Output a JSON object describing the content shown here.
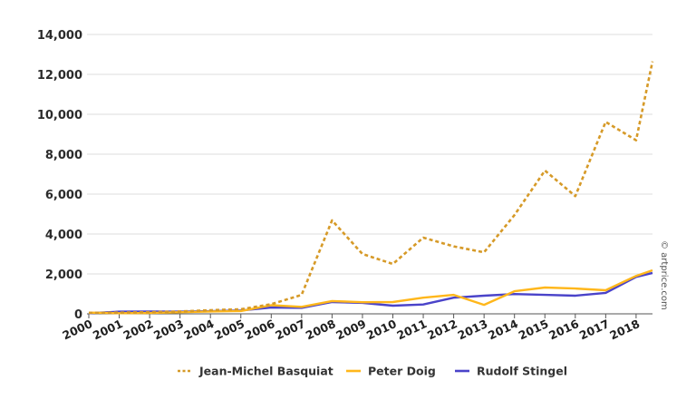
{
  "chart_data": {
    "type": "line",
    "title": "",
    "xlabel": "",
    "ylabel": "",
    "ylim": [
      0,
      14000
    ],
    "yticks": [
      0,
      2000,
      4000,
      6000,
      8000,
      10000,
      12000,
      14000
    ],
    "ytick_labels": [
      "0",
      "2,000",
      "4,000",
      "6,000",
      "8,000",
      "10,000",
      "12,000",
      "14,000"
    ],
    "grid": true,
    "legend_position": "bottom",
    "categories": [
      "2000",
      "2001",
      "2002",
      "2003",
      "2004",
      "2005",
      "2006",
      "2007",
      "2008",
      "2009",
      "2010",
      "2011",
      "2012",
      "2013",
      "2014",
      "2015",
      "2016",
      "2017",
      "2018",
      ""
    ],
    "series": [
      {
        "name": "Jean-Michel Basquiat",
        "color": "#d69a28",
        "style": "dashed",
        "values": [
          50,
          60,
          80,
          120,
          180,
          230,
          480,
          950,
          4680,
          3000,
          2500,
          3820,
          3380,
          3080,
          4950,
          7180,
          5900,
          9620,
          8700,
          12650
        ]
      },
      {
        "name": "Peter Doig",
        "color": "#ffb71b",
        "style": "solid",
        "values": [
          60,
          30,
          40,
          80,
          120,
          140,
          430,
          350,
          640,
          580,
          590,
          810,
          950,
          450,
          1130,
          1320,
          1270,
          1180,
          1900,
          2180
        ]
      },
      {
        "name": "Rudolf Stingel",
        "color": "#4a43c9",
        "style": "solid",
        "values": [
          30,
          110,
          120,
          110,
          130,
          170,
          320,
          300,
          590,
          550,
          410,
          470,
          810,
          910,
          990,
          950,
          910,
          1050,
          1850,
          2050
        ]
      }
    ],
    "annotations": [
      "© artprice.com"
    ]
  },
  "legend": {
    "items": [
      {
        "label": "Jean-Michel Basquiat"
      },
      {
        "label": "Peter Doig"
      },
      {
        "label": "Rudolf Stingel"
      }
    ]
  },
  "credit": "© artprice.com"
}
